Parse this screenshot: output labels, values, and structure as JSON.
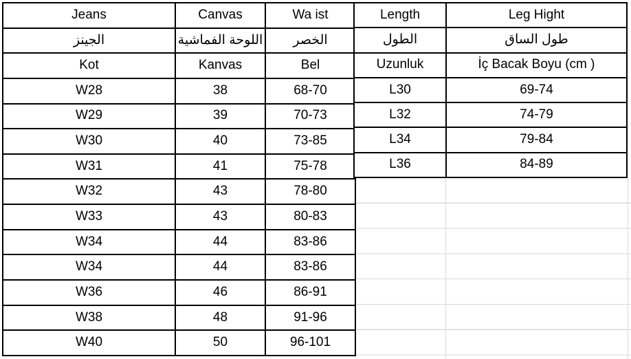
{
  "size_chart": {
    "waist_table": {
      "header_rows": [
        [
          "Jeans",
          "Canvas",
          "Wa ist"
        ],
        [
          "الجينز",
          "اللوحة الفماشية",
          "الخصر"
        ],
        [
          "Kot",
          "Kanvas",
          "Bel"
        ]
      ],
      "rows": [
        [
          "W28",
          "38",
          "68-70"
        ],
        [
          "W29",
          "39",
          "70-73"
        ],
        [
          "W30",
          "40",
          "73-85"
        ],
        [
          "W31",
          "41",
          "75-78"
        ],
        [
          "W32",
          "43",
          "78-80"
        ],
        [
          "W33",
          "43",
          "80-83"
        ],
        [
          "W34",
          "44",
          "83-86"
        ],
        [
          "W34",
          "44",
          "83-86"
        ],
        [
          "W36",
          "46",
          "86-91"
        ],
        [
          "W38",
          "48",
          "91-96"
        ],
        [
          "W40",
          "50",
          "96-101"
        ]
      ]
    },
    "length_table": {
      "header_rows": [
        [
          "Length",
          "Leg Hight"
        ],
        [
          "الطول",
          "طول الساق"
        ],
        [
          "Uzunluk",
          "İç Bacak Boyu (cm )"
        ]
      ],
      "rows": [
        [
          "L30",
          "69-74"
        ],
        [
          "L32",
          "74-79"
        ],
        [
          "L34",
          "79-84"
        ],
        [
          "L36",
          "84-89"
        ]
      ]
    },
    "colors": {
      "background": "#ffffff",
      "border": "#000000",
      "gridline": "#d9d9d9",
      "text": "#000000"
    }
  }
}
